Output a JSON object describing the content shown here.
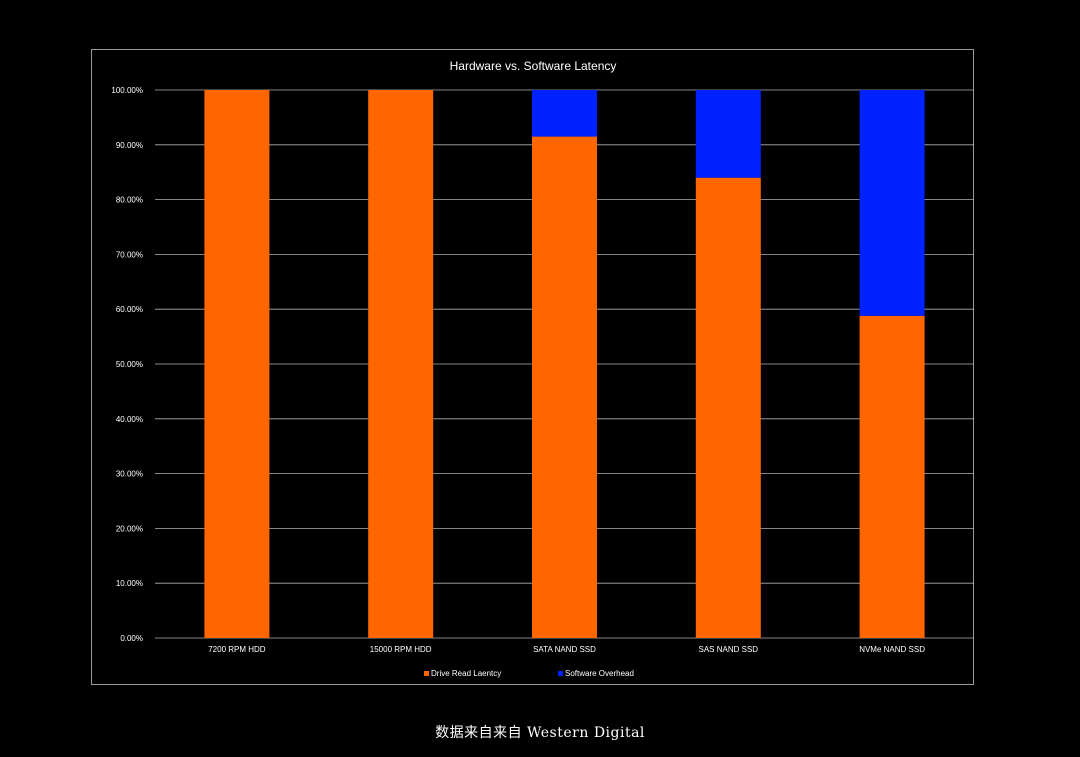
{
  "chart_data": {
    "type": "bar",
    "stacked": true,
    "title": "Hardware vs. Software Latency",
    "categories": [
      "7200 RPM HDD",
      "15000 RPM HDD",
      "SATA NAND SSD",
      "SAS NAND SSD",
      "NVMe NAND SSD"
    ],
    "series": [
      {
        "name": "Drive Read Laentcy",
        "color": "#ff6600",
        "values": [
          100.0,
          100.0,
          91.5,
          84.0,
          58.8
        ]
      },
      {
        "name": "Software Overhead",
        "color": "#0022ff",
        "values": [
          0.0,
          0.0,
          8.5,
          16.0,
          41.2
        ]
      }
    ],
    "y_ticks": [
      "0.00%",
      "10.00%",
      "20.00%",
      "30.00%",
      "40.00%",
      "50.00%",
      "60.00%",
      "70.00%",
      "80.00%",
      "90.00%",
      "100.00%"
    ],
    "ylim": [
      0,
      100
    ],
    "xlabel": "",
    "ylabel": "",
    "grid": true,
    "legend_position": "bottom"
  },
  "caption": "数据来自来自 Western Digital"
}
